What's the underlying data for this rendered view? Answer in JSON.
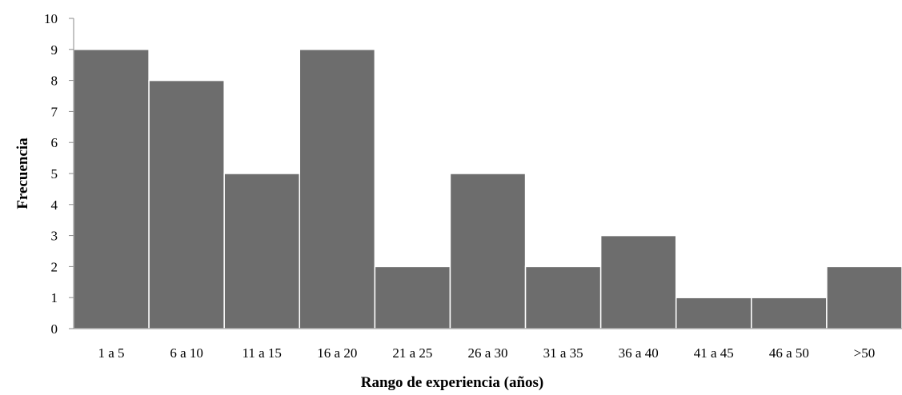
{
  "chart_data": {
    "type": "bar",
    "title": "",
    "xlabel": "Rango de experiencia (años)",
    "ylabel": "Frecuencia",
    "categories": [
      "1 a 5",
      "6 a 10",
      "11 a 15",
      "16 a 20",
      "21 a 25",
      "26 a 30",
      "31 a 35",
      "36 a 40",
      "41 a 45",
      "46 a 50",
      ">50"
    ],
    "values": [
      9,
      8,
      5,
      9,
      2,
      5,
      2,
      3,
      1,
      1,
      2
    ],
    "ylim": [
      0,
      10
    ],
    "yticks": [
      0,
      1,
      2,
      3,
      4,
      5,
      6,
      7,
      8,
      9,
      10
    ],
    "grid": false,
    "legend": "none",
    "bar_color": "#6d6d6d",
    "bar_edge_color": "#ffffff"
  }
}
